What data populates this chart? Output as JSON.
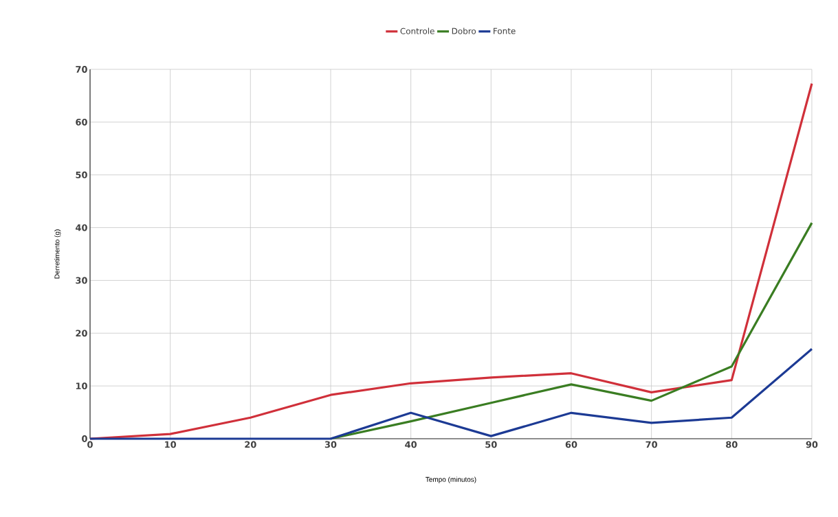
{
  "chart_data": {
    "type": "line",
    "xlabel": "Tempo (minutos)",
    "ylabel": "Derretimento (g)",
    "x": [
      0,
      10,
      20,
      30,
      40,
      50,
      60,
      70,
      80,
      90
    ],
    "series": [
      {
        "name": "Controle",
        "color": "#d0303a",
        "values": [
          0,
          0.9,
          4.0,
          8.3,
          10.5,
          11.6,
          12.4,
          8.8,
          11.1,
          67.3
        ]
      },
      {
        "name": "Dobro",
        "color": "#3a7d22",
        "values": [
          null,
          null,
          null,
          0,
          3.3,
          6.8,
          10.3,
          7.2,
          13.7,
          40.9
        ]
      },
      {
        "name": "Fonte",
        "color": "#1c3a94",
        "values": [
          0,
          0,
          0,
          0,
          4.9,
          0.5,
          4.9,
          3.0,
          4.0,
          17.0
        ]
      }
    ],
    "xlim": [
      0,
      90
    ],
    "ylim": [
      0,
      70
    ],
    "xticks": [
      0,
      10,
      20,
      30,
      40,
      50,
      60,
      70,
      80,
      90
    ],
    "yticks": [
      0,
      10,
      20,
      30,
      40,
      50,
      60,
      70
    ],
    "grid": true,
    "legend": "top",
    "marker": "none",
    "line_style": "solid"
  }
}
